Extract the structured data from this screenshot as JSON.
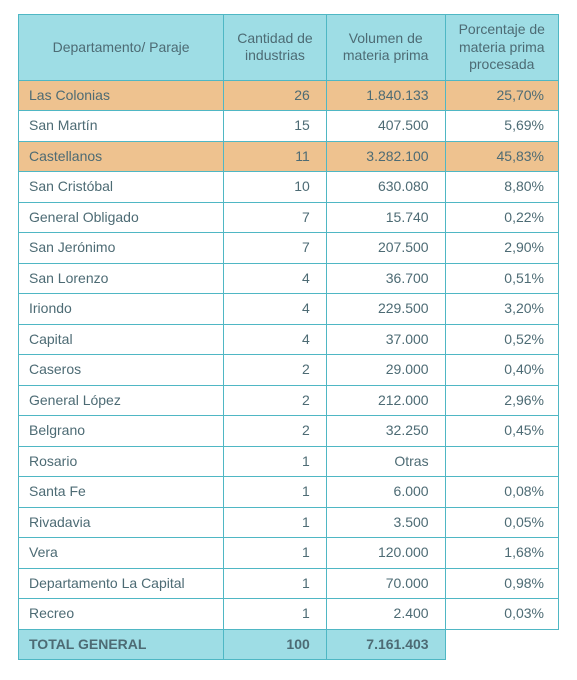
{
  "colors": {
    "border": "#4fb7c4",
    "header_bg": "#9edde5",
    "text": "#4d6b74",
    "highlight_bg": "#eec28f",
    "row_bg": "#ffffff",
    "total_bg": "#9edde5"
  },
  "columns": [
    "Departamento/\nParaje",
    "Cantidad de industrias",
    "Volumen de materia prima",
    "Porcentaje de materia prima procesada"
  ],
  "rows": [
    {
      "label": "Las Colonias",
      "qty": "26",
      "vol": "1.840.133",
      "pct": "25,70%",
      "highlight": true
    },
    {
      "label": "San Martín",
      "qty": "15",
      "vol": "407.500",
      "pct": "5,69%",
      "highlight": false
    },
    {
      "label": "Castellanos",
      "qty": "11",
      "vol": "3.282.100",
      "pct": "45,83%",
      "highlight": true
    },
    {
      "label": "San Cristóbal",
      "qty": "10",
      "vol": "630.080",
      "pct": "8,80%",
      "highlight": false
    },
    {
      "label": "General Obligado",
      "qty": "7",
      "vol": "15.740",
      "pct": "0,22%",
      "highlight": false
    },
    {
      "label": "San Jerónimo",
      "qty": "7",
      "vol": "207.500",
      "pct": "2,90%",
      "highlight": false
    },
    {
      "label": "San Lorenzo",
      "qty": "4",
      "vol": "36.700",
      "pct": "0,51%",
      "highlight": false
    },
    {
      "label": "Iriondo",
      "qty": "4",
      "vol": "229.500",
      "pct": "3,20%",
      "highlight": false
    },
    {
      "label": "Capital",
      "qty": "4",
      "vol": "37.000",
      "pct": "0,52%",
      "highlight": false
    },
    {
      "label": "Caseros",
      "qty": "2",
      "vol": "29.000",
      "pct": "0,40%",
      "highlight": false
    },
    {
      "label": "General López",
      "qty": "2",
      "vol": "212.000",
      "pct": "2,96%",
      "highlight": false
    },
    {
      "label": "Belgrano",
      "qty": "2",
      "vol": "32.250",
      "pct": "0,45%",
      "highlight": false
    },
    {
      "label": "Rosario",
      "qty": "1",
      "vol": "Otras",
      "pct": "",
      "highlight": false
    },
    {
      "label": "Santa Fe",
      "qty": "1",
      "vol": "6.000",
      "pct": "0,08%",
      "highlight": false
    },
    {
      "label": "Rivadavia",
      "qty": "1",
      "vol": "3.500",
      "pct": "0,05%",
      "highlight": false
    },
    {
      "label": "Vera",
      "qty": "1",
      "vol": "120.000",
      "pct": "1,68%",
      "highlight": false
    },
    {
      "label": "Departamento La Capital",
      "qty": "1",
      "vol": "70.000",
      "pct": "0,98%",
      "highlight": false
    },
    {
      "label": "Recreo",
      "qty": "1",
      "vol": "2.400",
      "pct": "0,03%",
      "highlight": false
    }
  ],
  "total": {
    "label": "TOTAL GENERAL",
    "qty": "100",
    "vol": "7.161.403",
    "pct": ""
  }
}
